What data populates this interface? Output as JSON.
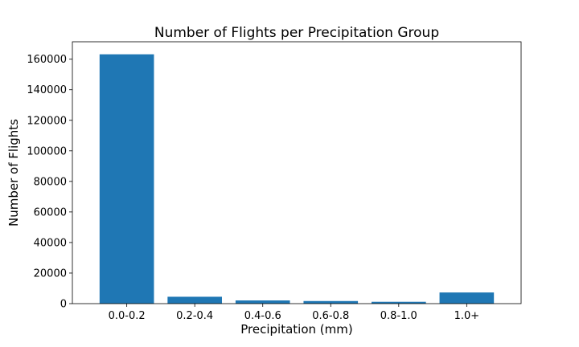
{
  "chart_data": {
    "type": "bar",
    "title": "Number of Flights per Precipitation Group",
    "xlabel": "Precipitation (mm)",
    "ylabel": "Number of Flights",
    "categories": [
      "0.0-0.2",
      "0.2-0.4",
      "0.4-0.6",
      "0.6-0.8",
      "0.8-1.0",
      "1.0+"
    ],
    "values": [
      163200,
      4500,
      2100,
      1700,
      1200,
      7300
    ],
    "ylim": [
      0,
      171400
    ],
    "yticks": [
      0,
      20000,
      40000,
      60000,
      80000,
      100000,
      120000,
      140000,
      160000
    ],
    "ytick_labels": [
      "0",
      "20000",
      "40000",
      "60000",
      "80000",
      "100000",
      "120000",
      "140000",
      "160000"
    ],
    "grid": false,
    "legend": "none",
    "bar_color": "#1f77b4"
  }
}
